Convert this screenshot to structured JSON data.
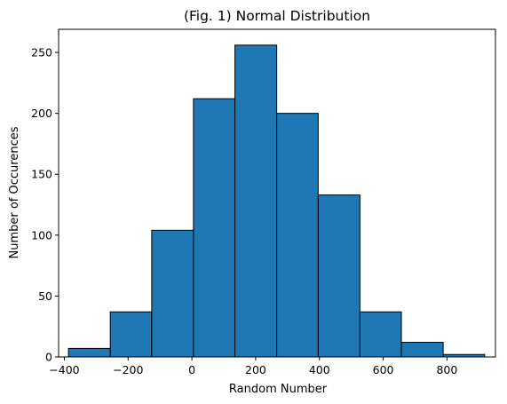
{
  "chart_data": {
    "type": "bar",
    "title": "(Fig. 1) Normal Distribution",
    "xlabel": "Random Number",
    "ylabel": "Number of Occurences",
    "xlim": [
      -418,
      952
    ],
    "ylim": [
      0,
      269
    ],
    "xticks": [
      -400,
      -200,
      0,
      200,
      400,
      600,
      800
    ],
    "xtick_labels": [
      "−400",
      "−200",
      "0",
      "200",
      "400",
      "600",
      "800"
    ],
    "yticks": [
      0,
      50,
      100,
      150,
      200,
      250
    ],
    "ytick_labels": [
      "0",
      "50",
      "100",
      "150",
      "200",
      "250"
    ],
    "bins": [
      {
        "x0": -387,
        "x1": -256,
        "count": 7
      },
      {
        "x0": -256,
        "x1": -126,
        "count": 37
      },
      {
        "x0": -126,
        "x1": 5,
        "count": 104
      },
      {
        "x0": 5,
        "x1": 135,
        "count": 212
      },
      {
        "x0": 135,
        "x1": 266,
        "count": 256
      },
      {
        "x0": 266,
        "x1": 396,
        "count": 200
      },
      {
        "x0": 396,
        "x1": 527,
        "count": 133
      },
      {
        "x0": 527,
        "x1": 657,
        "count": 37
      },
      {
        "x0": 657,
        "x1": 788,
        "count": 12
      },
      {
        "x0": 788,
        "x1": 918,
        "count": 2
      }
    ],
    "bar_color": "#1f77b4",
    "edge_color": "#000000",
    "grid": false,
    "legend": "none"
  }
}
